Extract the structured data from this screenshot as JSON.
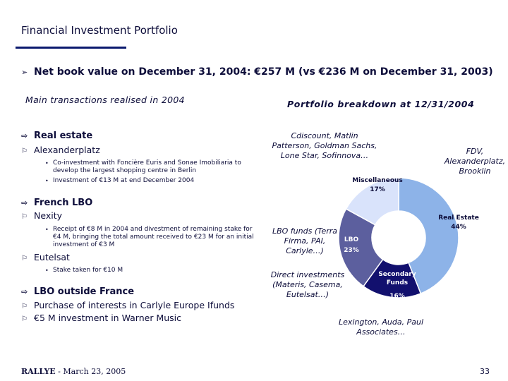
{
  "title": "Financial Investment Portfolio",
  "headline": "Net book value on December 31, 2004: €257 M (vs €236 M on December 31, 2003)",
  "left_heading": "Main transactions realised in 2004",
  "right_heading": "Portfolio breakdown at 12/31/2004",
  "sections": {
    "real_estate": {
      "title": "Real estate",
      "item": "Alexanderplatz",
      "bullets": [
        "Co-investment with Foncière Euris and Sonae Imobiliaria to develop the largest shopping centre in Berlin",
        "Investment of €13 M at end December 2004"
      ]
    },
    "french_lbo": {
      "title": "French LBO",
      "item1": "Nexity",
      "bullets1": [
        "Receipt of €8 M in 2004 and divestment of remaining stake for €4 M, bringing the total amount received to €23 M for an initial investment of €3 M"
      ],
      "item2": "Eutelsat",
      "bullets2": [
        "Stake taken for €10 M"
      ]
    },
    "lbo_outside": {
      "title": "LBO outside France",
      "items": [
        "Purchase of interests in Carlyle Europe Ifunds",
        "€5 M investment in Warner Music"
      ]
    }
  },
  "chart_data": {
    "type": "pie",
    "donut": true,
    "title": "Portfolio breakdown at 12/31/2004",
    "slices": [
      {
        "label": "Real Estate",
        "value": 44,
        "value_label": "44%",
        "color": "#8db3e8"
      },
      {
        "label": "Secondary Funds",
        "value": 16,
        "value_label": "16%",
        "color": "#12106e"
      },
      {
        "label": "LBO",
        "value": 23,
        "value_label": "23%",
        "color": "#5c5f9e"
      },
      {
        "label": "Miscellaneous",
        "value": 17,
        "value_label": "17%",
        "color": "#d9e3fb"
      }
    ],
    "annotations": {
      "misc": "Cdiscount, Matlin\nPatterson, Goldman Sachs,\nLone Star, Sofinnova…",
      "real_estate": "FDV,\nAlexanderplatz,\nBrooklin",
      "lbo": "LBO funds (Terra\nFirma, PAI,\nCarlyle…)",
      "direct": "Direct investments\n(Materis, Casema,\nEutelsat…)",
      "secondary": "Lexington, Auda, Paul\nAssociates…"
    }
  },
  "footer": {
    "brand": "RALLYE",
    "date": " - March 23, 2005"
  },
  "page_number": "33"
}
